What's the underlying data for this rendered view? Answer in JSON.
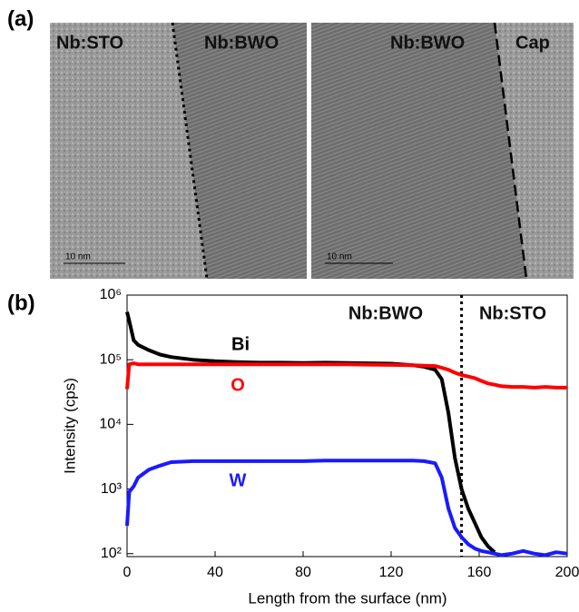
{
  "panel_a": {
    "label": "(a)",
    "images": [
      {
        "labels": [
          "Nb:STO",
          "Nb:BWO"
        ],
        "scale_bar": "10 nm"
      },
      {
        "labels": [
          "Nb:BWO",
          "Cap"
        ],
        "scale_bar": "10 nm"
      }
    ]
  },
  "chart_data": {
    "type": "line",
    "panel_label": "(b)",
    "x_label": "Length from the surface (nm)",
    "y_label": "Intensity (cps)",
    "annotations": [
      "Nb:BWO",
      "Nb:STO"
    ],
    "interface_x": 152,
    "log_y": true,
    "xlim": [
      0,
      200
    ],
    "xticks": [
      0,
      40,
      80,
      120,
      160,
      200
    ],
    "ylim": [
      90,
      1000000
    ],
    "yticks": [
      {
        "value": 100,
        "label": "10²"
      },
      {
        "value": 1000,
        "label": "10³"
      },
      {
        "value": 10000,
        "label": "10⁴"
      },
      {
        "value": 100000,
        "label": "10⁵"
      },
      {
        "value": 1000000,
        "label": "10⁶"
      }
    ],
    "x": [
      0,
      1,
      3,
      5,
      10,
      15,
      20,
      30,
      40,
      50,
      60,
      70,
      80,
      90,
      100,
      110,
      120,
      130,
      135,
      140,
      143,
      146,
      149,
      152,
      155,
      158,
      161,
      164,
      167,
      170,
      175,
      180,
      185,
      190,
      195,
      200
    ],
    "series": [
      {
        "name": "Bi",
        "color": "#000000",
        "values": [
          550000,
          400000,
          200000,
          170000,
          140000,
          120000,
          110000,
          100000,
          95000,
          92000,
          90000,
          90000,
          89000,
          90000,
          89000,
          88000,
          87000,
          82000,
          78000,
          70000,
          50000,
          15000,
          3000,
          1000,
          500,
          300,
          180,
          130,
          105,
          null,
          null,
          null,
          null,
          null,
          null,
          null
        ]
      },
      {
        "name": "O",
        "color": "#ff0000",
        "values": [
          35000,
          85000,
          88000,
          85000,
          85000,
          85000,
          85000,
          85000,
          85000,
          85000,
          85000,
          85000,
          85000,
          85000,
          85000,
          84000,
          83000,
          82000,
          81000,
          80000,
          75000,
          70000,
          63000,
          58000,
          55000,
          52000,
          47000,
          43000,
          41000,
          39000,
          38000,
          38000,
          37000,
          38000,
          37000,
          37000
        ]
      },
      {
        "name": "W",
        "color": "#1a1aff",
        "values": [
          270,
          900,
          1100,
          1500,
          2000,
          2300,
          2600,
          2700,
          2700,
          2700,
          2700,
          2700,
          2700,
          2750,
          2750,
          2750,
          2750,
          2750,
          2700,
          2500,
          1500,
          500,
          250,
          180,
          140,
          120,
          110,
          105,
          100,
          95,
          100,
          110,
          100,
          95,
          105,
          100
        ]
      }
    ]
  }
}
